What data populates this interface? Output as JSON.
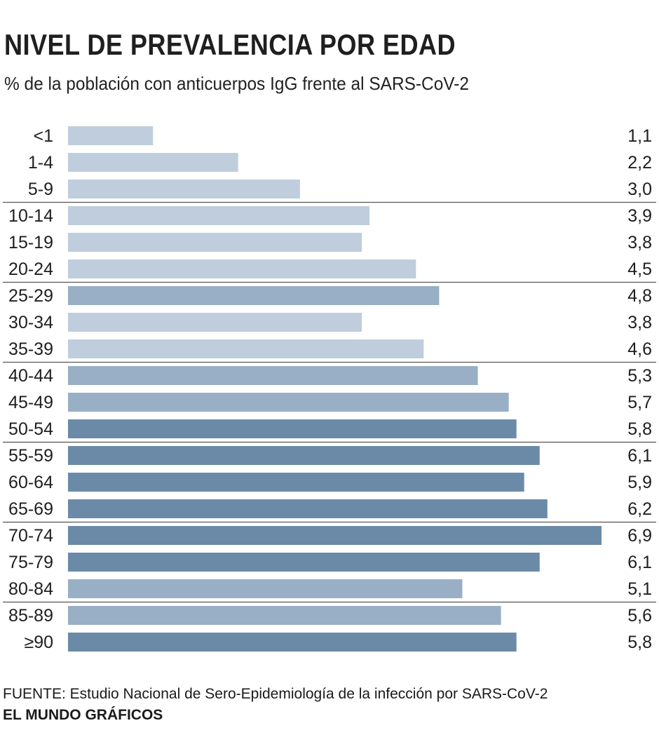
{
  "header": {
    "title": "NIVEL DE PREVALENCIA POR EDAD",
    "subtitle": "% de la población con anticuerpos IgG frente al SARS-CoV-2"
  },
  "footer": {
    "source": "FUENTE: Estudio Nacional de Sero-Epidemiología de la infección por SARS-CoV-2",
    "brand": "EL MUNDO GRÁFICOS"
  },
  "colors": {
    "light": "#bfcddc",
    "medium": "#99afc6",
    "dark": "#6b8aa8",
    "separator": "#555555"
  },
  "chart_data": {
    "type": "bar",
    "orientation": "horizontal",
    "title": "NIVEL DE PREVALENCIA POR EDAD",
    "subtitle": "% de la población con anticuerpos IgG frente al SARS-CoV-2",
    "categories": [
      "<1",
      "1-4",
      "5-9",
      "10-14",
      "15-19",
      "20-24",
      "25-29",
      "30-34",
      "35-39",
      "40-44",
      "45-49",
      "50-54",
      "55-59",
      "60-64",
      "65-69",
      "70-74",
      "75-79",
      "80-84",
      "85-89",
      "≥90"
    ],
    "values": [
      1.1,
      2.2,
      3.0,
      3.9,
      3.8,
      4.5,
      4.8,
      3.8,
      4.6,
      5.3,
      5.7,
      5.8,
      6.1,
      5.9,
      6.2,
      6.9,
      6.1,
      5.1,
      5.6,
      5.8
    ],
    "value_labels": [
      "1,1",
      "2,2",
      "3,0",
      "3,9",
      "3,8",
      "4,5",
      "4,8",
      "3,8",
      "4,6",
      "5,3",
      "5,7",
      "5,8",
      "6,1",
      "5,9",
      "6,2",
      "6,9",
      "6,1",
      "5,1",
      "5,6",
      "5,8"
    ],
    "shade": [
      "light",
      "light",
      "light",
      "light",
      "light",
      "light",
      "medium",
      "light",
      "light",
      "medium",
      "medium",
      "dark",
      "dark",
      "dark",
      "dark",
      "dark",
      "dark",
      "medium",
      "medium",
      "dark"
    ],
    "xlim": [
      0,
      6.9
    ],
    "grid": false
  }
}
